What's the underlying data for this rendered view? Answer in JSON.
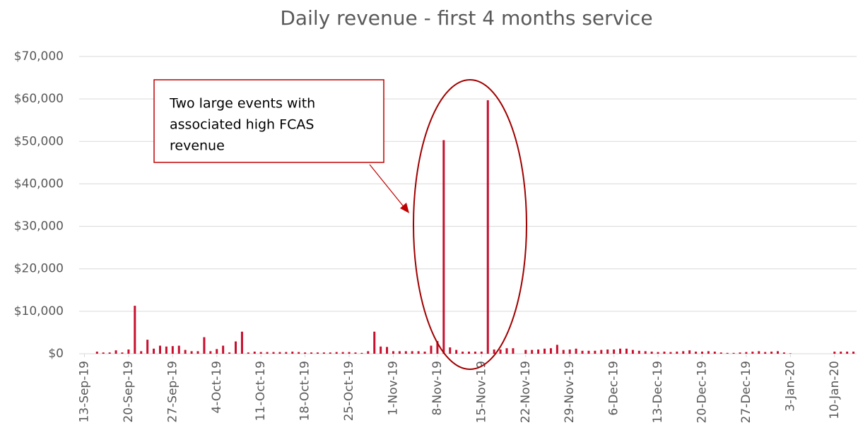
{
  "chart_data": {
    "type": "bar",
    "title": "Daily revenue - first 4 months service",
    "annotation": [
      "Two large events with",
      "associated high FCAS",
      "revenue"
    ],
    "color": "#c8102e",
    "grid": true,
    "ylim": [
      0,
      70000
    ],
    "yticks": [
      {
        "value": 0,
        "label": "$0"
      },
      {
        "value": 10000,
        "label": "$10,000"
      },
      {
        "value": 20000,
        "label": "$20,000"
      },
      {
        "value": 30000,
        "label": "$30,000"
      },
      {
        "value": 40000,
        "label": "$40,000"
      },
      {
        "value": 50000,
        "label": "$50,000"
      },
      {
        "value": 60000,
        "label": "$60,000"
      },
      {
        "value": 70000,
        "label": "$70,000"
      }
    ],
    "categories": [
      "13-Sep-19",
      null,
      null,
      null,
      null,
      null,
      null,
      "20-Sep-19",
      null,
      null,
      null,
      null,
      null,
      null,
      "27-Sep-19",
      null,
      null,
      null,
      null,
      null,
      null,
      "4-Oct-19",
      null,
      null,
      null,
      null,
      null,
      null,
      "11-Oct-19",
      null,
      null,
      null,
      null,
      null,
      null,
      "18-Oct-19",
      null,
      null,
      null,
      null,
      null,
      null,
      "25-Oct-19",
      null,
      null,
      null,
      null,
      null,
      null,
      "1-Nov-19",
      null,
      null,
      null,
      null,
      null,
      null,
      "8-Nov-19",
      null,
      null,
      null,
      null,
      null,
      null,
      "15-Nov-19",
      null,
      null,
      null,
      null,
      null,
      null,
      "22-Nov-19",
      null,
      null,
      null,
      null,
      null,
      null,
      "29-Nov-19",
      null,
      null,
      null,
      null,
      null,
      null,
      "6-Dec-19",
      null,
      null,
      null,
      null,
      null,
      null,
      "13-Dec-19",
      null,
      null,
      null,
      null,
      null,
      null,
      "20-Dec-19",
      null,
      null,
      null,
      null,
      null,
      null,
      "27-Dec-19",
      null,
      null,
      null,
      null,
      null,
      null,
      "3-Jan-20",
      null,
      null,
      null,
      null,
      null,
      null,
      "10-Jan-20",
      null,
      null,
      null
    ],
    "values": [
      0,
      0,
      500,
      300,
      300,
      800,
      300,
      1000,
      11300,
      600,
      3300,
      1200,
      1900,
      1700,
      1800,
      1900,
      900,
      600,
      600,
      3900,
      600,
      1100,
      1900,
      300,
      2900,
      5200,
      300,
      500,
      400,
      400,
      400,
      400,
      400,
      500,
      400,
      300,
      300,
      300,
      300,
      300,
      400,
      400,
      400,
      300,
      200,
      600,
      5200,
      1700,
      1600,
      600,
      600,
      600,
      600,
      600,
      500,
      1900,
      3000,
      50300,
      1500,
      900,
      500,
      500,
      500,
      500,
      59700,
      1000,
      1000,
      1300,
      1300,
      0,
      900,
      900,
      1000,
      1200,
      1300,
      2100,
      900,
      1000,
      1200,
      700,
      700,
      700,
      900,
      1000,
      1000,
      1200,
      1200,
      900,
      700,
      600,
      500,
      400,
      500,
      400,
      500,
      600,
      800,
      500,
      500,
      600,
      500,
      300,
      200,
      200,
      300,
      400,
      500,
      600,
      400,
      500,
      600,
      300,
      100,
      0,
      0,
      0,
      0,
      0,
      0,
      500,
      500,
      500,
      500
    ]
  }
}
